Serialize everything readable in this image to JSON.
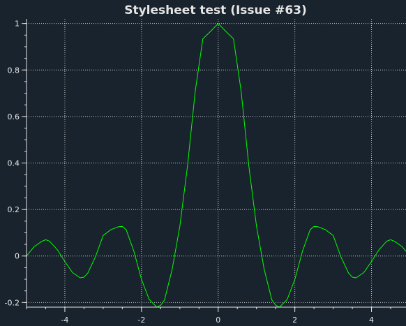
{
  "chart_data": {
    "type": "line",
    "title": "Stylesheet test (Issue #63)",
    "xlabel": "",
    "ylabel": "",
    "xlim": [
      -5,
      4.9
    ],
    "ylim": [
      -0.22,
      1.02
    ],
    "grid": true,
    "x_ticks": [
      -4,
      -2,
      0,
      2,
      4
    ],
    "x_tick_labels": [
      "-4",
      "-2",
      "0",
      "2",
      "4"
    ],
    "y_ticks": [
      -0.2,
      0,
      0.2,
      0.4,
      0.6,
      0.8,
      1
    ],
    "y_tick_labels": [
      "-0.2",
      "0",
      "0.2",
      "0.4",
      "0.6",
      "0.8",
      "1"
    ],
    "x_minor_step": 0.5,
    "y_minor_step": 0.05,
    "series": [
      {
        "color": "#00ff00",
        "x": [
          -5.0,
          -4.8,
          -4.6,
          -4.5,
          -4.4,
          -4.2,
          -4.0,
          -3.8,
          -3.6,
          -3.5,
          -3.4,
          -3.2,
          -3.0,
          -2.8,
          -2.6,
          -2.5,
          -2.4,
          -2.2,
          -2.0,
          -1.8,
          -1.6,
          -1.5,
          -1.4,
          -1.2,
          -1.0,
          -0.8,
          -0.6,
          -0.4,
          -0.2,
          0.0,
          0.2,
          0.4,
          0.6,
          0.8,
          1.0,
          1.2,
          1.4,
          1.5,
          1.6,
          1.8,
          2.0,
          2.2,
          2.4,
          2.5,
          2.6,
          2.8,
          3.0,
          3.2,
          3.4,
          3.5,
          3.6,
          3.8,
          4.0,
          4.2,
          4.4,
          4.5,
          4.6,
          4.8,
          4.9
        ],
        "y": [
          0.0,
          0.04,
          0.063,
          0.07,
          0.064,
          0.028,
          -0.024,
          -0.071,
          -0.094,
          -0.091,
          -0.073,
          -0.003,
          0.0882,
          0.113,
          0.126,
          0.127,
          0.113,
          0.021,
          -0.101,
          -0.187,
          -0.22,
          -0.212,
          -0.189,
          -0.057,
          0.128,
          0.387,
          0.707,
          0.934,
          0.966,
          1.0,
          0.966,
          0.934,
          0.707,
          0.387,
          0.128,
          -0.057,
          -0.189,
          -0.212,
          -0.22,
          -0.187,
          -0.101,
          0.021,
          0.113,
          0.127,
          0.126,
          0.113,
          0.0882,
          -0.003,
          -0.073,
          -0.091,
          -0.094,
          -0.071,
          -0.024,
          0.028,
          0.064,
          0.07,
          0.063,
          0.04,
          0.02
        ]
      }
    ]
  }
}
